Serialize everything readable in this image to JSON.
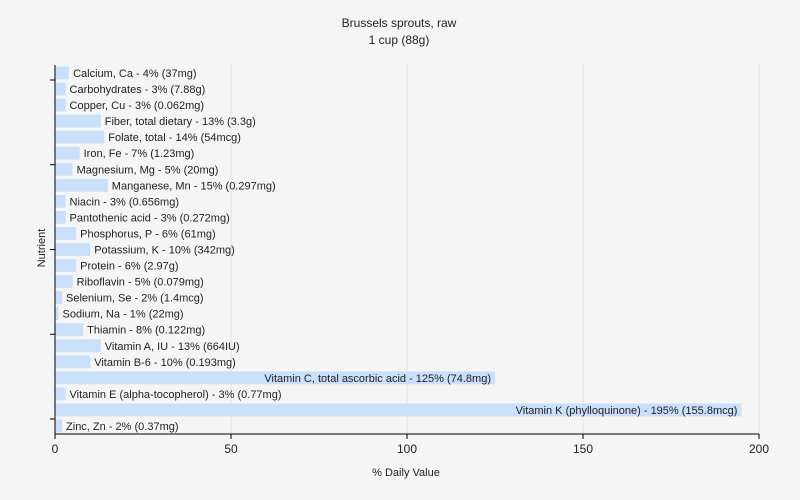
{
  "chart_data": {
    "type": "bar",
    "orientation": "horizontal",
    "title": "Brussels sprouts, raw",
    "subtitle": "1 cup (88g)",
    "xlabel": "% Daily Value",
    "ylabel": "Nutrient",
    "xlim": [
      0,
      200
    ],
    "xticks": [
      0,
      50,
      100,
      150,
      200
    ],
    "grid": "vertical",
    "bar_color": "#c9dffa",
    "categories": [
      "Calcium, Ca - 4% (37mg)",
      "Carbohydrates - 3% (7.88g)",
      "Copper, Cu - 3% (0.062mg)",
      "Fiber, total dietary - 13% (3.3g)",
      "Folate, total - 14% (54mcg)",
      "Iron, Fe - 7% (1.23mg)",
      "Magnesium, Mg - 5% (20mg)",
      "Manganese, Mn - 15% (0.297mg)",
      "Niacin - 3% (0.656mg)",
      "Pantothenic acid - 3% (0.272mg)",
      "Phosphorus, P - 6% (61mg)",
      "Potassium, K - 10% (342mg)",
      "Protein - 6% (2.97g)",
      "Riboflavin - 5% (0.079mg)",
      "Selenium, Se - 2% (1.4mcg)",
      "Sodium, Na - 1% (22mg)",
      "Thiamin - 8% (0.122mg)",
      "Vitamin A, IU - 13% (664IU)",
      "Vitamin B-6 - 10% (0.193mg)",
      "Vitamin C, total ascorbic acid - 125% (74.8mg)",
      "Vitamin E (alpha-tocopherol) - 3% (0.77mg)",
      "Vitamin K (phylloquinone) - 195% (155.8mcg)",
      "Zinc, Zn - 2% (0.37mg)"
    ],
    "values": [
      4,
      3,
      3,
      13,
      14,
      7,
      5,
      15,
      3,
      3,
      6,
      10,
      6,
      5,
      2,
      1,
      8,
      13,
      10,
      125,
      3,
      195,
      2
    ]
  }
}
